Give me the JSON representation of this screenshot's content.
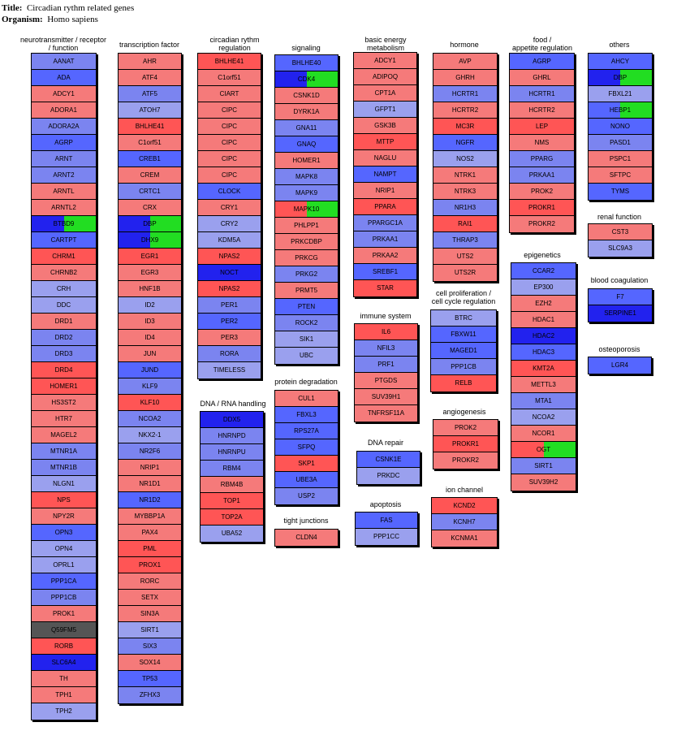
{
  "header": {
    "title_label": "Title:",
    "title_value": "Circadian rythm related genes",
    "organism_label": "Organism:",
    "organism_value": "Homo sapiens"
  },
  "colors": {
    "S": "#5566ff",
    "B": "#7b84f0",
    "L": "#9aa0ee",
    "P": "#f57a7a",
    "R": "#ff5555",
    "D": "#2222ee",
    "G": "#22dd22",
    "K": "#555555"
  },
  "groups": [
    {
      "id": "neurotransmitter",
      "title": [
        "neurotransmitter / receptor",
        "/ function"
      ],
      "genes": [
        [
          "AANAT",
          "B",
          "B"
        ],
        [
          "ADA",
          "S",
          "S"
        ],
        [
          "ADCY1",
          "P",
          "P"
        ],
        [
          "ADORA1",
          "P",
          "P"
        ],
        [
          "ADORA2A",
          "B",
          "B"
        ],
        [
          "AGRP",
          "S",
          "S"
        ],
        [
          "ARNT",
          "B",
          "B"
        ],
        [
          "ARNT2",
          "B",
          "B"
        ],
        [
          "ARNTL",
          "P",
          "P"
        ],
        [
          "ARNTL2",
          "P",
          "P"
        ],
        [
          "BTBD9",
          "D",
          "G"
        ],
        [
          "CARTPT",
          "S",
          "S"
        ],
        [
          "CHRM1",
          "R",
          "R"
        ],
        [
          "CHRNB2",
          "P",
          "P"
        ],
        [
          "CRH",
          "L",
          "L"
        ],
        [
          "DDC",
          "L",
          "L"
        ],
        [
          "DRD1",
          "P",
          "P"
        ],
        [
          "DRD2",
          "B",
          "B"
        ],
        [
          "DRD3",
          "B",
          "B"
        ],
        [
          "DRD4",
          "R",
          "R"
        ],
        [
          "HOMER1",
          "R",
          "R"
        ],
        [
          "HS3ST2",
          "P",
          "P"
        ],
        [
          "HTR7",
          "P",
          "P"
        ],
        [
          "MAGEL2",
          "P",
          "P"
        ],
        [
          "MTNR1A",
          "B",
          "B"
        ],
        [
          "MTNR1B",
          "B",
          "B"
        ],
        [
          "NLGN1",
          "L",
          "L"
        ],
        [
          "NPS",
          "R",
          "R"
        ],
        [
          "NPY2R",
          "P",
          "P"
        ],
        [
          "OPN3",
          "S",
          "S"
        ],
        [
          "OPN4",
          "L",
          "L"
        ],
        [
          "OPRL1",
          "L",
          "L"
        ],
        [
          "PPP1CA",
          "S",
          "S"
        ],
        [
          "PPP1CB",
          "B",
          "B"
        ],
        [
          "PROK1",
          "P",
          "P"
        ],
        [
          "Q59FM5",
          "K",
          "K"
        ],
        [
          "RORB",
          "R",
          "R"
        ],
        [
          "SLC6A4",
          "D",
          "D"
        ],
        [
          "TH",
          "P",
          "P"
        ],
        [
          "TPH1",
          "P",
          "P"
        ],
        [
          "TPH2",
          "L",
          "L"
        ]
      ]
    },
    {
      "id": "transcription",
      "title": [
        "transcription factor"
      ],
      "genes": [
        [
          "AHR",
          "P",
          "P"
        ],
        [
          "ATF4",
          "P",
          "P"
        ],
        [
          "ATF5",
          "B",
          "B"
        ],
        [
          "ATOH7",
          "L",
          "L"
        ],
        [
          "BHLHE41",
          "R",
          "R"
        ],
        [
          "C1orf51",
          "P",
          "P"
        ],
        [
          "CREB1",
          "S",
          "S"
        ],
        [
          "CREM",
          "P",
          "P"
        ],
        [
          "CRTC1",
          "B",
          "B"
        ],
        [
          "CRX",
          "P",
          "P"
        ],
        [
          "DBP",
          "D",
          "G"
        ],
        [
          "DHX9",
          "D",
          "G"
        ],
        [
          "EGR1",
          "R",
          "R"
        ],
        [
          "EGR3",
          "P",
          "P"
        ],
        [
          "HNF1B",
          "P",
          "P"
        ],
        [
          "ID2",
          "L",
          "L"
        ],
        [
          "ID3",
          "P",
          "P"
        ],
        [
          "ID4",
          "P",
          "P"
        ],
        [
          "JUN",
          "P",
          "P"
        ],
        [
          "JUND",
          "S",
          "S"
        ],
        [
          "KLF9",
          "B",
          "B"
        ],
        [
          "KLF10",
          "R",
          "R"
        ],
        [
          "NCOA2",
          "B",
          "B"
        ],
        [
          "NKX2-1",
          "L",
          "L"
        ],
        [
          "NR2F6",
          "B",
          "B"
        ],
        [
          "NRIP1",
          "P",
          "P"
        ],
        [
          "NR1D1",
          "P",
          "P"
        ],
        [
          "NR1D2",
          "S",
          "S"
        ],
        [
          "MYBBP1A",
          "P",
          "P"
        ],
        [
          "PAX4",
          "P",
          "P"
        ],
        [
          "PML",
          "R",
          "R"
        ],
        [
          "PROX1",
          "R",
          "R"
        ],
        [
          "RORC",
          "P",
          "P"
        ],
        [
          "SETX",
          "P",
          "P"
        ],
        [
          "SIN3A",
          "P",
          "P"
        ],
        [
          "SIRT1",
          "L",
          "L"
        ],
        [
          "SIX3",
          "B",
          "B"
        ],
        [
          "SOX14",
          "P",
          "P"
        ],
        [
          "TP53",
          "S",
          "S"
        ],
        [
          "ZFHX3",
          "B",
          "B"
        ]
      ]
    },
    {
      "id": "circadian",
      "title": [
        "circadian rythm",
        "regulation"
      ],
      "genes": [
        [
          "BHLHE41",
          "R",
          "R"
        ],
        [
          "C1orf51",
          "P",
          "P"
        ],
        [
          "CIART",
          "P",
          "P"
        ],
        [
          "CIPC",
          "P",
          "P"
        ],
        [
          "CIPC",
          "P",
          "P"
        ],
        [
          "CIPC",
          "P",
          "P"
        ],
        [
          "CIPC",
          "P",
          "P"
        ],
        [
          "CIPC",
          "P",
          "P"
        ],
        [
          "CLOCK",
          "S",
          "S"
        ],
        [
          "CRY1",
          "P",
          "P"
        ],
        [
          "CRY2",
          "L",
          "L"
        ],
        [
          "KDM5A",
          "L",
          "L"
        ],
        [
          "NPAS2",
          "R",
          "R"
        ],
        [
          "NOCT",
          "D",
          "D"
        ],
        [
          "NPAS2",
          "R",
          "R"
        ],
        [
          "PER1",
          "B",
          "B"
        ],
        [
          "PER2",
          "S",
          "S"
        ],
        [
          "PER3",
          "P",
          "P"
        ],
        [
          "RORA",
          "B",
          "B"
        ],
        [
          "TIMELESS",
          "L",
          "L"
        ]
      ]
    },
    {
      "id": "dna",
      "title": [
        "DNA / RNA handling"
      ],
      "genes": [
        [
          "DDX5",
          "D",
          "D"
        ],
        [
          "HNRNPD",
          "B",
          "B"
        ],
        [
          "HNRNPU",
          "B",
          "B"
        ],
        [
          "RBM4",
          "B",
          "B"
        ],
        [
          "RBM4B",
          "P",
          "P"
        ],
        [
          "TOP1",
          "R",
          "R"
        ],
        [
          "TOP2A",
          "R",
          "R"
        ],
        [
          "UBA52",
          "L",
          "L"
        ]
      ]
    },
    {
      "id": "signaling",
      "title": [
        "signaling"
      ],
      "genes": [
        [
          "BHLHE40",
          "S",
          "S"
        ],
        [
          "CDK4",
          "D",
          "G"
        ],
        [
          "CSNK1D",
          "P",
          "P"
        ],
        [
          "DYRK1A",
          "P",
          "P"
        ],
        [
          "GNA11",
          "B",
          "B"
        ],
        [
          "GNAQ",
          "S",
          "S"
        ],
        [
          "HOMER1",
          "P",
          "P"
        ],
        [
          "MAPK8",
          "B",
          "B"
        ],
        [
          "MAPK9",
          "B",
          "B"
        ],
        [
          "MAPK10",
          "R",
          "G"
        ],
        [
          "PHLPP1",
          "P",
          "P"
        ],
        [
          "PRKCDBP",
          "P",
          "P"
        ],
        [
          "PRKCG",
          "P",
          "P"
        ],
        [
          "PRKG2",
          "B",
          "B"
        ],
        [
          "PRMT5",
          "P",
          "P"
        ],
        [
          "PTEN",
          "S",
          "S"
        ],
        [
          "ROCK2",
          "B",
          "B"
        ],
        [
          "SIK1",
          "L",
          "L"
        ],
        [
          "UBC",
          "L",
          "L"
        ]
      ]
    },
    {
      "id": "protein",
      "title": [
        "protein degradation"
      ],
      "genes": [
        [
          "CUL1",
          "P",
          "P"
        ],
        [
          "FBXL3",
          "S",
          "S"
        ],
        [
          "RPS27A",
          "S",
          "S"
        ],
        [
          "SFPQ",
          "S",
          "S"
        ],
        [
          "SKP1",
          "R",
          "R"
        ],
        [
          "UBE3A",
          "S",
          "S"
        ],
        [
          "USP2",
          "B",
          "B"
        ]
      ]
    },
    {
      "id": "tight",
      "title": [
        "tight junctions"
      ],
      "genes": [
        [
          "CLDN4",
          "P",
          "P"
        ]
      ]
    },
    {
      "id": "energy",
      "title": [
        "basic energy",
        "metabolism"
      ],
      "genes": [
        [
          "ADCY1",
          "P",
          "P"
        ],
        [
          "ADIPOQ",
          "P",
          "P"
        ],
        [
          "CPT1A",
          "P",
          "P"
        ],
        [
          "GFPT1",
          "L",
          "L"
        ],
        [
          "GSK3B",
          "P",
          "P"
        ],
        [
          "MTTP",
          "R",
          "R"
        ],
        [
          "NAGLU",
          "P",
          "P"
        ],
        [
          "NAMPT",
          "S",
          "S"
        ],
        [
          "NRIP1",
          "P",
          "P"
        ],
        [
          "PPARA",
          "R",
          "R"
        ],
        [
          "PPARGC1A",
          "B",
          "B"
        ],
        [
          "PRKAA1",
          "B",
          "B"
        ],
        [
          "PRKAA2",
          "P",
          "P"
        ],
        [
          "SREBF1",
          "S",
          "S"
        ],
        [
          "STAR",
          "R",
          "R"
        ]
      ]
    },
    {
      "id": "immune",
      "title": [
        "immune system"
      ],
      "genes": [
        [
          "IL6",
          "R",
          "R"
        ],
        [
          "NFIL3",
          "B",
          "B"
        ],
        [
          "PRF1",
          "B",
          "B"
        ],
        [
          "PTGDS",
          "P",
          "P"
        ],
        [
          "SUV39H1",
          "P",
          "P"
        ],
        [
          "TNFRSF11A",
          "P",
          "P"
        ]
      ]
    },
    {
      "id": "repair",
      "title": [
        "DNA repair"
      ],
      "genes": [
        [
          "CSNK1E",
          "S",
          "S"
        ],
        [
          "PRKDC",
          "L",
          "L"
        ]
      ]
    },
    {
      "id": "apoptosis",
      "title": [
        "apoptosis"
      ],
      "genes": [
        [
          "FAS",
          "S",
          "S"
        ],
        [
          "PPP1CC",
          "L",
          "L"
        ]
      ]
    },
    {
      "id": "hormone",
      "title": [
        "hormone"
      ],
      "genes": [
        [
          "AVP",
          "P",
          "P"
        ],
        [
          "GHRH",
          "P",
          "P"
        ],
        [
          "HCRTR1",
          "B",
          "B"
        ],
        [
          "HCRTR2",
          "P",
          "P"
        ],
        [
          "MC3R",
          "R",
          "R"
        ],
        [
          "NGFR",
          "S",
          "S"
        ],
        [
          "NOS2",
          "L",
          "L"
        ],
        [
          "NTRK1",
          "P",
          "P"
        ],
        [
          "NTRK3",
          "P",
          "P"
        ],
        [
          "NR1H3",
          "B",
          "B"
        ],
        [
          "RAI1",
          "R",
          "R"
        ],
        [
          "THRAP3",
          "B",
          "B"
        ],
        [
          "UTS2",
          "P",
          "P"
        ],
        [
          "UTS2R",
          "P",
          "P"
        ]
      ]
    },
    {
      "id": "prolif",
      "title": [
        "cell proliferation /",
        "cell cycle regulation"
      ],
      "genes": [
        [
          "BTRC",
          "L",
          "L"
        ],
        [
          "FBXW11",
          "S",
          "S"
        ],
        [
          "MAGED1",
          "S",
          "S"
        ],
        [
          "PPP1CB",
          "B",
          "B"
        ],
        [
          "RELB",
          "R",
          "R"
        ]
      ]
    },
    {
      "id": "angio",
      "title": [
        "angiogenesis"
      ],
      "genes": [
        [
          "PROK2",
          "P",
          "P"
        ],
        [
          "PROKR1",
          "R",
          "R"
        ],
        [
          "PROKR2",
          "P",
          "P"
        ]
      ]
    },
    {
      "id": "ion",
      "title": [
        "ion channel"
      ],
      "genes": [
        [
          "KCND2",
          "R",
          "R"
        ],
        [
          "KCNH7",
          "B",
          "B"
        ],
        [
          "KCNMA1",
          "P",
          "P"
        ]
      ]
    },
    {
      "id": "food",
      "title": [
        "food /",
        "appetite regulation"
      ],
      "genes": [
        [
          "AGRP",
          "S",
          "S"
        ],
        [
          "GHRL",
          "P",
          "P"
        ],
        [
          "HCRTR1",
          "B",
          "B"
        ],
        [
          "HCRTR2",
          "P",
          "P"
        ],
        [
          "LEP",
          "R",
          "R"
        ],
        [
          "NMS",
          "P",
          "P"
        ],
        [
          "PPARG",
          "B",
          "B"
        ],
        [
          "PRKAA1",
          "B",
          "B"
        ],
        [
          "PROK2",
          "P",
          "P"
        ],
        [
          "PROKR1",
          "R",
          "R"
        ],
        [
          "PROKR2",
          "P",
          "P"
        ]
      ]
    },
    {
      "id": "epi",
      "title": [
        "epigenetics"
      ],
      "genes": [
        [
          "CCAR2",
          "S",
          "S"
        ],
        [
          "EP300",
          "L",
          "L"
        ],
        [
          "EZH2",
          "P",
          "P"
        ],
        [
          "HDAC1",
          "P",
          "P"
        ],
        [
          "HDAC2",
          "D",
          "D"
        ],
        [
          "HDAC3",
          "S",
          "S"
        ],
        [
          "KMT2A",
          "R",
          "R"
        ],
        [
          "METTL3",
          "P",
          "P"
        ],
        [
          "MTA1",
          "B",
          "B"
        ],
        [
          "NCOA2",
          "L",
          "L"
        ],
        [
          "NCOR1",
          "P",
          "P"
        ],
        [
          "OGT",
          "R",
          "G"
        ],
        [
          "SIRT1",
          "B",
          "B"
        ],
        [
          "SUV39H2",
          "P",
          "P"
        ]
      ]
    },
    {
      "id": "others",
      "title": [
        "others"
      ],
      "genes": [
        [
          "AHCY",
          "S",
          "S"
        ],
        [
          "DBP",
          "D",
          "G"
        ],
        [
          "FBXL21",
          "L",
          "L"
        ],
        [
          "HEBP1",
          "S",
          "G"
        ],
        [
          "NONO",
          "S",
          "S"
        ],
        [
          "PASD1",
          "B",
          "B"
        ],
        [
          "PSPC1",
          "P",
          "P"
        ],
        [
          "SFTPC",
          "P",
          "P"
        ],
        [
          "TYMS",
          "S",
          "S"
        ]
      ]
    },
    {
      "id": "renal",
      "title": [
        "renal function"
      ],
      "genes": [
        [
          "CST3",
          "P",
          "P"
        ],
        [
          "SLC9A3",
          "L",
          "L"
        ]
      ]
    },
    {
      "id": "blood",
      "title": [
        "blood coagulation"
      ],
      "genes": [
        [
          "F7",
          "S",
          "S"
        ],
        [
          "SERPINE1",
          "D",
          "D"
        ]
      ]
    },
    {
      "id": "osteo",
      "title": [
        "osteoporosis"
      ],
      "genes": [
        [
          "LGR4",
          "S",
          "S"
        ]
      ]
    }
  ]
}
